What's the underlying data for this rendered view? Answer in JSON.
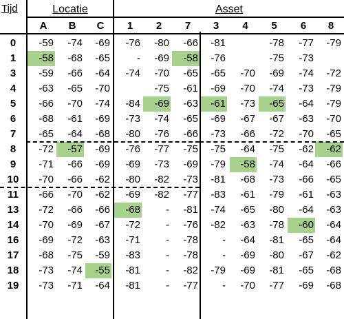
{
  "header": {
    "time_label": "Tijd",
    "location_group": "Locatie",
    "asset_group": "Asset",
    "columns": [
      "A",
      "B",
      "C",
      "1",
      "2",
      "7",
      "3",
      "4",
      "5",
      "6",
      "8"
    ]
  },
  "rows": [
    {
      "time": "0",
      "values": [
        "-59",
        "-74",
        "-69",
        "-76",
        "-80",
        "-66",
        "-81",
        "",
        "-78",
        "-77",
        "-79"
      ],
      "highlight": []
    },
    {
      "time": "1",
      "values": [
        "-58",
        "-68",
        "-65",
        "-",
        "-69",
        "-58",
        "-76",
        "",
        "-75",
        "-73",
        ""
      ],
      "highlight": [
        0,
        5
      ]
    },
    {
      "time": "3",
      "values": [
        "-59",
        "-66",
        "-64",
        "-74",
        "-70",
        "-65",
        "-65",
        "-70",
        "-69",
        "-74",
        "-72"
      ],
      "highlight": []
    },
    {
      "time": "4",
      "values": [
        "-63",
        "-65",
        "-70",
        "",
        "-75",
        "-61",
        "-69",
        "-70",
        "-74",
        "-73",
        "-79"
      ],
      "highlight": []
    },
    {
      "time": "5",
      "values": [
        "-66",
        "-70",
        "-74",
        "-84",
        "-69",
        "-63",
        "-61",
        "-73",
        "-65",
        "-64",
        "-79"
      ],
      "highlight": [
        4,
        6,
        8
      ]
    },
    {
      "time": "6",
      "values": [
        "-68",
        "-61",
        "-69",
        "-73",
        "-74",
        "-65",
        "-69",
        "-67",
        "-67",
        "-63",
        "-70"
      ],
      "highlight": []
    },
    {
      "time": "7",
      "values": [
        "-65",
        "-64",
        "-68",
        "-80",
        "-76",
        "-66",
        "-73",
        "-66",
        "-72",
        "-70",
        "-65"
      ],
      "highlight": []
    },
    {
      "time": "8",
      "values": [
        "-72",
        "-57",
        "-69",
        "-76",
        "-77",
        "-75",
        "-75",
        "-64",
        "-75",
        "-62",
        "-62"
      ],
      "highlight": [
        1,
        10
      ]
    },
    {
      "time": "9",
      "values": [
        "-71",
        "-66",
        "-69",
        "-69",
        "-73",
        "-69",
        "-79",
        "-58",
        "-74",
        "-64",
        "-66"
      ],
      "highlight": [
        7
      ]
    },
    {
      "time": "10",
      "values": [
        "-70",
        "-66",
        "-62",
        "-80",
        "-82",
        "-73",
        "-81",
        "-68",
        "-73",
        "-66",
        "-65"
      ],
      "highlight": []
    },
    {
      "time": "11",
      "values": [
        "-66",
        "-70",
        "-62",
        "-69",
        "-82",
        "-77",
        "-83",
        "-61",
        "-79",
        "-61",
        "-63"
      ],
      "highlight": []
    },
    {
      "time": "13",
      "values": [
        "-72",
        "-66",
        "-66",
        "-68",
        "-",
        "-81",
        "-74",
        "-65",
        "-80",
        "-64",
        "-63"
      ],
      "highlight": [
        3
      ]
    },
    {
      "time": "14",
      "values": [
        "-70",
        "-69",
        "-67",
        "-72",
        "-",
        "-76",
        "-82",
        "-63",
        "-78",
        "-60",
        "-64"
      ],
      "highlight": [
        9
      ]
    },
    {
      "time": "16",
      "values": [
        "-69",
        "-72",
        "-63",
        "-71",
        "-",
        "-78",
        "-",
        "-64",
        "-81",
        "-65",
        "-64"
      ],
      "highlight": []
    },
    {
      "time": "17",
      "values": [
        "-68",
        "-75",
        "-59",
        "-83",
        "-",
        "-78",
        "-",
        "-69",
        "-80",
        "-67",
        "-62"
      ],
      "highlight": []
    },
    {
      "time": "18",
      "values": [
        "-73",
        "-74",
        "-55",
        "-81",
        "-",
        "-82",
        "-79",
        "-69",
        "-81",
        "-65",
        "-68"
      ],
      "highlight": [
        2
      ]
    },
    {
      "time": "19",
      "values": [
        "-73",
        "-71",
        "-64",
        "-81",
        "-",
        "-77",
        "-",
        "-70",
        "-77",
        "-69",
        "-68"
      ],
      "highlight": []
    }
  ],
  "colors": {
    "highlight": "#a9d18e",
    "text": "#000000",
    "background": "#ffffff"
  }
}
